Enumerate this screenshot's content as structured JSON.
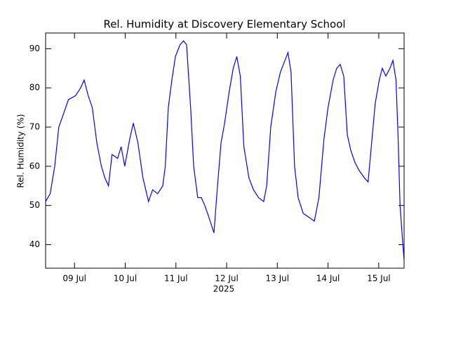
{
  "chart_data": {
    "type": "line",
    "title": "Rel. Humidity at Discovery Elementary School",
    "ylabel": "Rel. Humidity (%)",
    "xlabel": "2025",
    "xlim": [
      8.43,
      15.5
    ],
    "ylim": [
      34,
      94
    ],
    "xticks": [
      {
        "value": 9,
        "label": "09 Jul"
      },
      {
        "value": 10,
        "label": "10 Jul"
      },
      {
        "value": 11,
        "label": "11 Jul"
      },
      {
        "value": 12,
        "label": "12 Jul"
      },
      {
        "value": 13,
        "label": "13 Jul"
      },
      {
        "value": 14,
        "label": "14 Jul"
      },
      {
        "value": 15,
        "label": "15 Jul"
      }
    ],
    "yticks": [
      40,
      50,
      60,
      70,
      80,
      90
    ],
    "grid": false,
    "x": [
      8.43,
      8.52,
      8.61,
      8.69,
      8.8,
      8.88,
      9.02,
      9.12,
      9.19,
      9.27,
      9.35,
      9.44,
      9.53,
      9.6,
      9.67,
      9.74,
      9.85,
      9.92,
      9.99,
      10.09,
      10.16,
      10.25,
      10.35,
      10.46,
      10.54,
      10.64,
      10.74,
      10.79,
      10.85,
      10.92,
      10.99,
      11.08,
      11.15,
      11.21,
      11.29,
      11.35,
      11.43,
      11.5,
      11.57,
      11.65,
      11.75,
      11.82,
      11.89,
      11.96,
      12.05,
      12.13,
      12.2,
      12.27,
      12.34,
      12.44,
      12.53,
      12.63,
      12.73,
      12.79,
      12.87,
      12.97,
      13.06,
      13.15,
      13.21,
      13.27,
      13.34,
      13.41,
      13.51,
      13.62,
      13.73,
      13.82,
      13.92,
      14.0,
      14.1,
      14.17,
      14.24,
      14.31,
      14.38,
      14.45,
      14.53,
      14.61,
      14.72,
      14.79,
      14.86,
      14.93,
      15.01,
      15.07,
      15.14,
      15.22,
      15.28,
      15.34,
      15.38,
      15.42,
      15.47,
      15.5
    ],
    "series": [
      {
        "color": "#0000ff",
        "values": [
          51,
          53,
          60,
          70,
          74,
          77,
          78,
          80,
          82,
          78,
          75,
          66,
          60,
          57,
          55,
          63,
          62,
          65,
          60,
          67,
          71,
          66,
          57,
          51,
          54,
          53,
          55,
          60,
          75,
          82,
          88,
          91,
          92,
          91,
          75,
          60,
          52,
          52,
          50,
          47,
          43,
          55,
          66,
          71,
          79,
          85,
          88,
          83,
          65,
          57,
          54,
          52,
          51,
          55,
          70,
          79,
          84,
          87,
          89,
          84,
          60,
          52,
          48,
          47,
          46,
          52,
          67,
          75,
          82,
          85,
          86,
          83,
          68,
          64,
          61,
          59,
          57,
          56,
          66,
          76,
          82,
          85,
          83,
          85,
          87,
          82,
          68,
          50,
          41,
          36
        ]
      }
    ]
  }
}
